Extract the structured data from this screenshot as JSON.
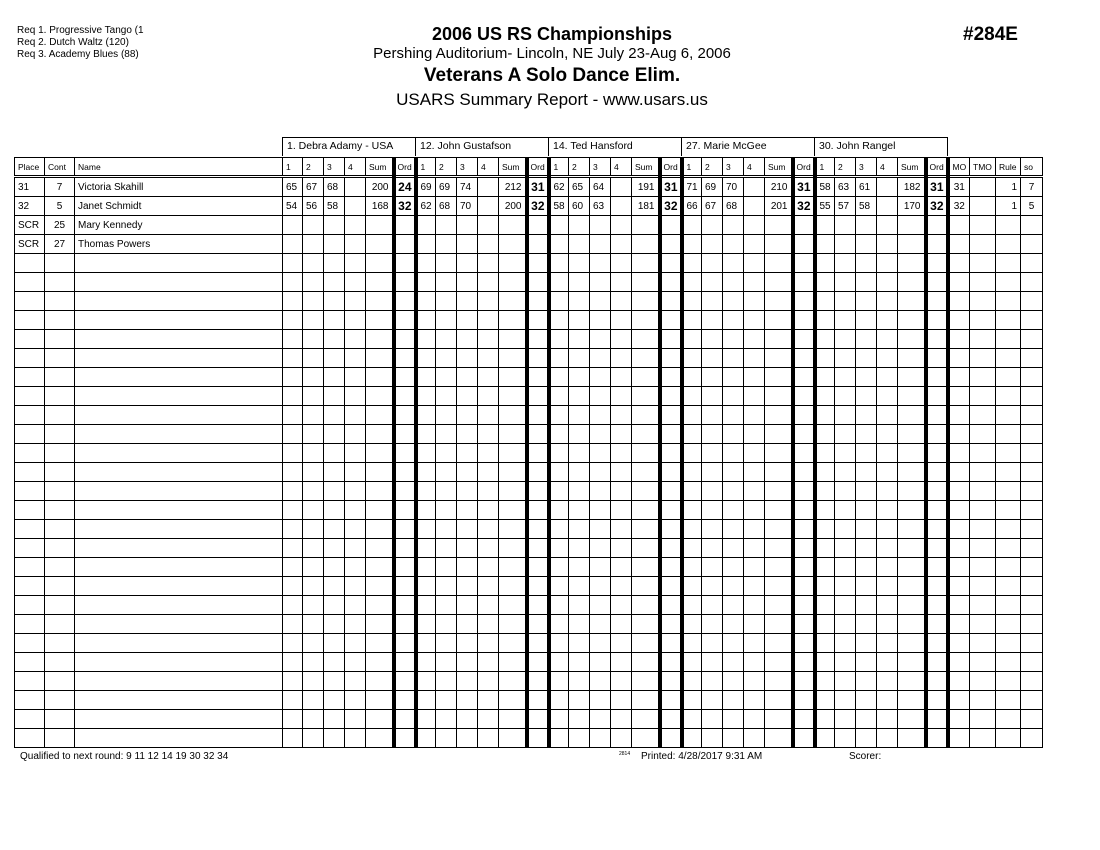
{
  "requirements": [
    "Req  1.  Progressive Tango (1",
    "Req  2.  Dutch Waltz (120)",
    "Req  3.  Academy Blues (88)"
  ],
  "header": {
    "title": "2006 US RS Championships",
    "venue": "Pershing Auditorium- Lincoln, NE  July 23-Aug 6, 2006",
    "event": "Veterans A Solo Dance Elim.",
    "report": "USARS Summary Report - www.usars.us",
    "event_number": "#284E"
  },
  "judges": [
    "1.  Debra  Adamy - USA",
    "12.  John  Gustafson",
    "14.  Ted Hansford",
    "27.  Marie McGee",
    "30.  John Rangel"
  ],
  "columns": {
    "place": "Place",
    "cont": "Cont",
    "name": "Name",
    "judge_cols": [
      "1",
      "2",
      "3",
      "4",
      "Sum",
      "Ord"
    ],
    "mo": "MO",
    "tmo": "TMO",
    "rule": "Rule",
    "so": "so"
  },
  "rows": [
    {
      "place": "31",
      "cont": "7",
      "name": "Victoria Skahill",
      "scores": [
        [
          "65",
          "67",
          "68",
          "",
          "200",
          "24"
        ],
        [
          "69",
          "69",
          "74",
          "",
          "212",
          "31"
        ],
        [
          "62",
          "65",
          "64",
          "",
          "191",
          "31"
        ],
        [
          "71",
          "69",
          "70",
          "",
          "210",
          "31"
        ],
        [
          "58",
          "63",
          "61",
          "",
          "182",
          "31"
        ]
      ],
      "mo": "31",
      "tmo": "",
      "rule": "1",
      "so": "7"
    },
    {
      "place": "32",
      "cont": "5",
      "name": "Janet Schmidt",
      "scores": [
        [
          "54",
          "56",
          "58",
          "",
          "168",
          "32"
        ],
        [
          "62",
          "68",
          "70",
          "",
          "200",
          "32"
        ],
        [
          "58",
          "60",
          "63",
          "",
          "181",
          "32"
        ],
        [
          "66",
          "67",
          "68",
          "",
          "201",
          "32"
        ],
        [
          "55",
          "57",
          "58",
          "",
          "170",
          "32"
        ]
      ],
      "mo": "32",
      "tmo": "",
      "rule": "1",
      "so": "5"
    },
    {
      "place": "SCR",
      "cont": "25",
      "name": "Mary Kennedy"
    },
    {
      "place": "SCR",
      "cont": "27",
      "name": "Thomas Powers"
    }
  ],
  "footer": {
    "qualified": "Qualified to next round:   9 11 12 14 19 30 32 34",
    "code": "2814",
    "printed": "Printed:  4/28/2017  9:31 AM",
    "scorer": "Scorer:"
  }
}
